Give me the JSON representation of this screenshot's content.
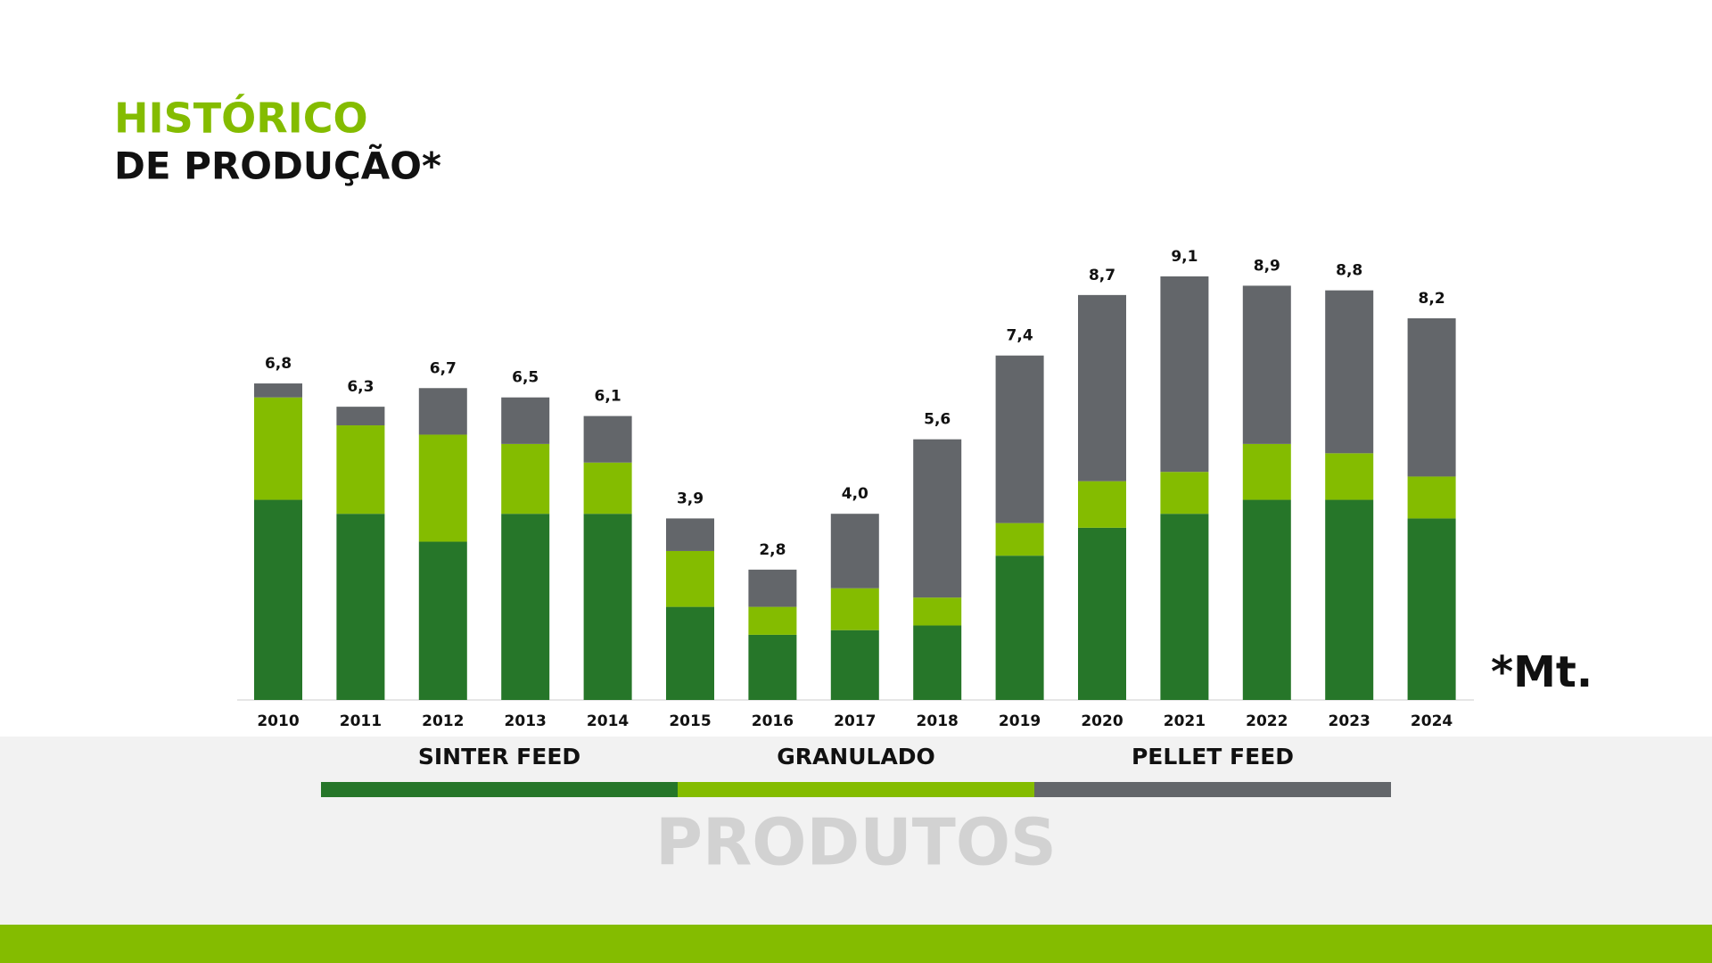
{
  "chart_data": {
    "type": "stacked_bar",
    "title": "HISTÓRICO",
    "subtitle": "DE PRODUÇÃO*",
    "unit_note": "*Mt.",
    "legend_title": "PRODUTOS",
    "categories": [
      "2010",
      "2011",
      "2012",
      "2013",
      "2014",
      "2015",
      "2016",
      "2017",
      "2018",
      "2019",
      "2020",
      "2021",
      "2022",
      "2023",
      "2024"
    ],
    "series": [
      {
        "name": "SINTER FEED",
        "color": "#267629",
        "values": [
          4.3,
          4.0,
          3.4,
          4.0,
          4.0,
          2.0,
          1.4,
          1.5,
          1.6,
          3.1,
          3.7,
          4.0,
          4.3,
          4.3,
          3.9
        ]
      },
      {
        "name": "GRANULADO",
        "color": "#84bc00",
        "values": [
          2.2,
          1.9,
          2.3,
          1.5,
          1.1,
          1.2,
          0.6,
          0.9,
          0.6,
          0.7,
          1.0,
          0.9,
          1.2,
          1.0,
          0.9
        ]
      },
      {
        "name": "PELLET FEED",
        "color": "#63666a",
        "values": [
          0.3,
          0.4,
          1.0,
          1.0,
          1.0,
          0.7,
          0.8,
          1.6,
          3.4,
          3.6,
          4.0,
          4.2,
          3.4,
          3.5,
          3.4
        ]
      }
    ],
    "totals": [
      6.8,
      6.3,
      6.7,
      6.5,
      6.1,
      3.9,
      2.8,
      4.0,
      5.6,
      7.4,
      8.7,
      9.1,
      8.9,
      8.8,
      8.2
    ],
    "total_labels": [
      "6,8",
      "6,3",
      "6,7",
      "6,5",
      "6,1",
      "3,9",
      "2,8",
      "4,0",
      "5,6",
      "7,4",
      "8,7",
      "9,1",
      "8,9",
      "8,8",
      "8,2"
    ],
    "ylim": [
      0,
      10
    ]
  }
}
